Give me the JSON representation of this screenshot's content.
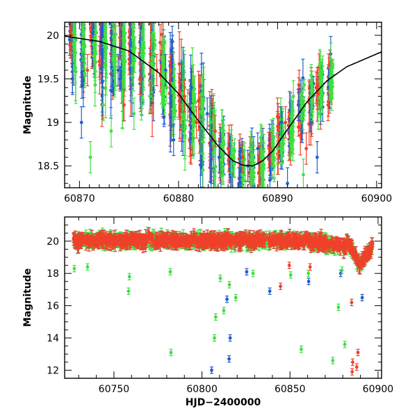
{
  "chart_data": [
    {
      "type": "scatter",
      "title": "",
      "xlabel": "",
      "ylabel": "Magnitude",
      "xlim": [
        60868.5,
        60900.5
      ],
      "ylim": [
        20.15,
        18.25
      ],
      "y_inverted": true,
      "grid": false,
      "x_ticks": [
        60870,
        60880,
        60890,
        60900
      ],
      "x_tick_labels": [
        "60870",
        "60880",
        "60890",
        "60900"
      ],
      "y_ticks": [
        18.5,
        19,
        19.5,
        20
      ],
      "y_tick_labels": [
        "18.5",
        "19",
        "19.5",
        "20"
      ],
      "colors": {
        "blue": "#1f5fd0",
        "green": "#3fe03f",
        "red": "#f0402a",
        "model": "#000000"
      },
      "series": [
        {
          "color": "blue",
          "note_points": [
            [
              60869.0,
              19.95
            ],
            [
              60869.3,
              19.5
            ],
            [
              60870.2,
              19.0
            ],
            [
              60872.3,
              19.3
            ],
            [
              60873.9,
              19.6
            ],
            [
              60876.3,
              19.5
            ],
            [
              60878.7,
              19.6
            ],
            [
              60879.5,
              18.8
            ],
            [
              60881.3,
              19.4
            ],
            [
              60882.9,
              19.1
            ],
            [
              60884.1,
              18.6
            ],
            [
              60885.2,
              18.55
            ],
            [
              60886.1,
              18.3
            ],
            [
              60887.0,
              18.5
            ],
            [
              60888.0,
              18.7
            ],
            [
              60889.2,
              18.8
            ],
            [
              60890.4,
              19.0
            ],
            [
              60891.0,
              18.3
            ],
            [
              60892.1,
              19.2
            ],
            [
              60894.0,
              18.6
            ]
          ]
        },
        {
          "color": "green",
          "note_points": [
            [
              60869.6,
              19.8
            ],
            [
              60871.1,
              18.6
            ],
            [
              60872.4,
              19.2
            ],
            [
              60873.2,
              18.9
            ],
            [
              60875.5,
              19.1
            ],
            [
              60877.1,
              19.3
            ],
            [
              60878.8,
              19.4
            ],
            [
              60880.9,
              19.2
            ],
            [
              60881.4,
              18.9
            ],
            [
              60883.2,
              19.0
            ],
            [
              60885.3,
              18.6
            ],
            [
              60886.6,
              18.5
            ],
            [
              60888.4,
              18.6
            ],
            [
              60890.0,
              18.7
            ],
            [
              60891.6,
              19.3
            ],
            [
              60892.6,
              18.4
            ],
            [
              60894.1,
              19.1
            ]
          ]
        },
        {
          "color": "red",
          "note_points": [
            [
              60869.2,
              20.0
            ],
            [
              60870.8,
              19.6
            ],
            [
              60872.0,
              19.7
            ],
            [
              60874.5,
              19.2
            ],
            [
              60876.2,
              19.5
            ],
            [
              60877.8,
              19.6
            ],
            [
              60879.2,
              19.6
            ],
            [
              60880.6,
              19.3
            ],
            [
              60881.8,
              19.0
            ],
            [
              60883.7,
              18.9
            ],
            [
              60885.0,
              18.7
            ],
            [
              60886.5,
              18.6
            ],
            [
              60888.2,
              18.55
            ],
            [
              60889.3,
              18.7
            ],
            [
              60890.8,
              19.0
            ],
            [
              60892.9,
              18.7
            ],
            [
              60893.9,
              19.4
            ],
            [
              60895.1,
              19.2
            ]
          ]
        },
        {
          "color": "model",
          "type": "line",
          "x": [
            60868.5,
            60872,
            60875,
            60878,
            60880,
            60882,
            60884,
            60885.5,
            60886.5,
            60887.5,
            60888.5,
            60889.5,
            60891,
            60893,
            60895,
            60897,
            60900.5
          ],
          "y": [
            19.99,
            19.93,
            19.82,
            19.57,
            19.33,
            19.02,
            18.73,
            18.56,
            18.51,
            18.5,
            18.56,
            18.67,
            18.92,
            19.24,
            19.48,
            19.64,
            19.81
          ]
        }
      ]
    },
    {
      "type": "scatter",
      "title": "",
      "xlabel": "HJD−2400000",
      "ylabel": "Magnitude",
      "xlim": [
        60722,
        60902
      ],
      "ylim": [
        21.5,
        11.5
      ],
      "y_inverted": true,
      "grid": false,
      "x_ticks": [
        60750,
        60800,
        60850,
        60900
      ],
      "x_tick_labels": [
        "60750",
        "60800",
        "60850",
        "60900"
      ],
      "y_ticks": [
        12,
        14,
        16,
        18,
        20
      ],
      "y_tick_labels": [
        "12",
        "14",
        "16",
        "18",
        "20"
      ],
      "outliers": [
        {
          "color": "blue",
          "x": 60805.5,
          "y": 12.0
        },
        {
          "color": "blue",
          "x": 60815.4,
          "y": 12.7
        },
        {
          "color": "blue",
          "x": 60816.0,
          "y": 14.0
        },
        {
          "color": "blue",
          "x": 60814.2,
          "y": 16.4
        },
        {
          "color": "blue",
          "x": 60838.5,
          "y": 16.9
        },
        {
          "color": "blue",
          "x": 60860.6,
          "y": 17.5
        },
        {
          "color": "blue",
          "x": 60891.0,
          "y": 16.5
        },
        {
          "color": "blue",
          "x": 60825.4,
          "y": 18.1
        },
        {
          "color": "blue",
          "x": 60878.8,
          "y": 18.0
        },
        {
          "color": "green",
          "x": 60782.4,
          "y": 13.1
        },
        {
          "color": "green",
          "x": 60807.1,
          "y": 14.0
        },
        {
          "color": "green",
          "x": 60807.8,
          "y": 15.3
        },
        {
          "color": "green",
          "x": 60812.4,
          "y": 15.7
        },
        {
          "color": "green",
          "x": 60810.4,
          "y": 17.7
        },
        {
          "color": "green",
          "x": 60815.6,
          "y": 17.3
        },
        {
          "color": "green",
          "x": 60819.2,
          "y": 16.5
        },
        {
          "color": "green",
          "x": 60829.0,
          "y": 18.0
        },
        {
          "color": "green",
          "x": 60856.4,
          "y": 13.3
        },
        {
          "color": "green",
          "x": 60874.3,
          "y": 12.6
        },
        {
          "color": "green",
          "x": 60881.1,
          "y": 13.6
        },
        {
          "color": "green",
          "x": 60877.5,
          "y": 15.9
        },
        {
          "color": "green",
          "x": 60879.5,
          "y": 18.2
        },
        {
          "color": "green",
          "x": 60758.3,
          "y": 16.9
        },
        {
          "color": "green",
          "x": 60758.8,
          "y": 17.8
        },
        {
          "color": "green",
          "x": 60727.5,
          "y": 18.3
        },
        {
          "color": "green",
          "x": 60735.0,
          "y": 18.4
        },
        {
          "color": "green",
          "x": 60782.0,
          "y": 18.1
        },
        {
          "color": "green",
          "x": 60860.4,
          "y": 18.0
        },
        {
          "color": "green",
          "x": 60850.4,
          "y": 17.9
        },
        {
          "color": "red",
          "x": 60885.3,
          "y": 11.9
        },
        {
          "color": "red",
          "x": 60885.6,
          "y": 12.5
        },
        {
          "color": "red",
          "x": 60887.9,
          "y": 12.2
        },
        {
          "color": "red",
          "x": 60888.6,
          "y": 13.1
        },
        {
          "color": "red",
          "x": 60885.0,
          "y": 16.2
        },
        {
          "color": "red",
          "x": 60844.6,
          "y": 17.2
        },
        {
          "color": "red",
          "x": 60849.6,
          "y": 18.5
        },
        {
          "color": "red",
          "x": 60861.4,
          "y": 18.4
        }
      ]
    }
  ]
}
